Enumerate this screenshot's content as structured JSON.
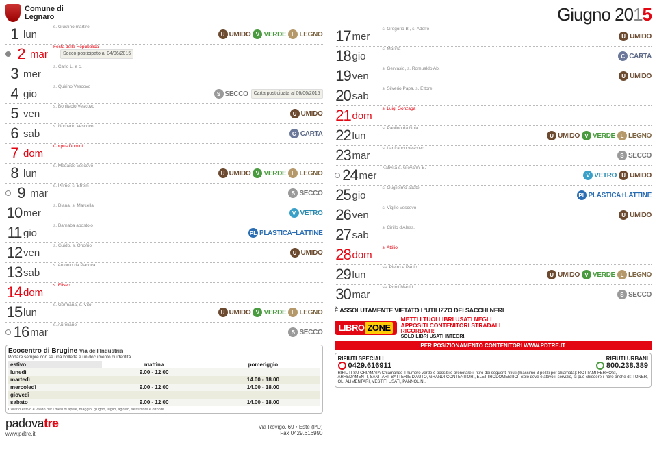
{
  "muni_line1": "Comune di",
  "muni_line2": "Legnaro",
  "month_title": "Giugno 20",
  "year_suffix1": "1",
  "year_suffix2": "5",
  "waste_types": {
    "umido": {
      "short": "U",
      "label": "UMIDO",
      "cls": "u-umido"
    },
    "verde": {
      "short": "V",
      "label": "VERDE",
      "cls": "u-verde"
    },
    "legno": {
      "short": "L",
      "label": "LEGNO",
      "cls": "u-legno"
    },
    "secco": {
      "short": "S",
      "label": "SECCO",
      "cls": "u-secco"
    },
    "carta": {
      "short": "C",
      "label": "CARTA",
      "cls": "u-carta"
    },
    "vetro": {
      "short": "V",
      "label": "VETRO",
      "cls": "u-vetro"
    },
    "plastica": {
      "short": "PL",
      "label": "PLASTICA+LATTINE",
      "cls": "u-plast"
    }
  },
  "left_days": [
    {
      "n": "1",
      "wd": "lun",
      "saint": "s. Giustino martire",
      "badges": [
        "umido",
        "verde",
        "legno"
      ]
    },
    {
      "n": "2",
      "wd": "mar",
      "saint": "Festa della Repubblica",
      "red": true,
      "moon": "full",
      "post": "Secco posticipato al 04/06/2015"
    },
    {
      "n": "3",
      "wd": "mer",
      "saint": "s. Carlo L. e c."
    },
    {
      "n": "4",
      "wd": "gio",
      "saint": "s. Quirino Vescovo",
      "badges": [
        "secco"
      ],
      "post": "Carta posticipata al 06/06/2015"
    },
    {
      "n": "5",
      "wd": "ven",
      "saint": "s. Bonifacio Vescovo",
      "badges": [
        "umido"
      ]
    },
    {
      "n": "6",
      "wd": "sab",
      "saint": "s. Norberto Vescovo",
      "badges": [
        "carta"
      ]
    },
    {
      "n": "7",
      "wd": "dom",
      "saint": "Corpus Domini",
      "red": true
    },
    {
      "n": "8",
      "wd": "lun",
      "saint": "s. Medardo vescovo",
      "badges": [
        "umido",
        "verde",
        "legno"
      ]
    },
    {
      "n": "9",
      "wd": "mar",
      "saint": "s. Primo, s. Efrem",
      "badges": [
        "secco"
      ],
      "moon": "empty"
    },
    {
      "n": "10",
      "wd": "mer",
      "saint": "s. Diana, s. Marcella",
      "badges": [
        "vetro"
      ]
    },
    {
      "n": "11",
      "wd": "gio",
      "saint": "s. Barnaba apostolo",
      "badges": [
        "plastica"
      ]
    },
    {
      "n": "12",
      "wd": "ven",
      "saint": "s. Guido, s. Onofrio",
      "badges": [
        "umido"
      ]
    },
    {
      "n": "13",
      "wd": "sab",
      "saint": "s. Antonio da Padova"
    },
    {
      "n": "14",
      "wd": "dom",
      "saint": "s. Eliseo",
      "red": true
    },
    {
      "n": "15",
      "wd": "lun",
      "saint": "s. Germana, s. Vito",
      "badges": [
        "umido",
        "verde",
        "legno"
      ]
    },
    {
      "n": "16",
      "wd": "mar",
      "saint": "s. Aureliano",
      "badges": [
        "secco"
      ],
      "moon": "empty"
    }
  ],
  "right_days": [
    {
      "n": "17",
      "wd": "mer",
      "saint": "s. Gregorio B., s. Adolfo",
      "badges": [
        "umido"
      ]
    },
    {
      "n": "18",
      "wd": "gio",
      "saint": "s. Marina",
      "badges": [
        "carta"
      ]
    },
    {
      "n": "19",
      "wd": "ven",
      "saint": "s. Gervasio, s. Romualdo Ab.",
      "badges": [
        "umido"
      ]
    },
    {
      "n": "20",
      "wd": "sab",
      "saint": "s. Silverio Papa, s. Ettore"
    },
    {
      "n": "21",
      "wd": "dom",
      "saint": "s. Luigi Gonzaga",
      "red": true
    },
    {
      "n": "22",
      "wd": "lun",
      "saint": "s. Paolino da Nola",
      "badges": [
        "umido",
        "verde",
        "legno"
      ]
    },
    {
      "n": "23",
      "wd": "mar",
      "saint": "s. Lanfranco vescovo",
      "badges": [
        "secco"
      ]
    },
    {
      "n": "24",
      "wd": "mer",
      "saint": "Natività s. Giovanni B.",
      "badges": [
        "vetro",
        "umido"
      ],
      "moon": "empty"
    },
    {
      "n": "25",
      "wd": "gio",
      "saint": "s. Guglielmo abate",
      "badges": [
        "plastica"
      ]
    },
    {
      "n": "26",
      "wd": "ven",
      "saint": "s. Vigilio vescovo",
      "badges": [
        "umido"
      ]
    },
    {
      "n": "27",
      "wd": "sab",
      "saint": "s. Cirillo d'Aless."
    },
    {
      "n": "28",
      "wd": "dom",
      "saint": "s. Attilio",
      "red": true
    },
    {
      "n": "29",
      "wd": "lun",
      "saint": "ss. Pietro e Paolo",
      "badges": [
        "umido",
        "verde",
        "legno"
      ]
    },
    {
      "n": "30",
      "wd": "mar",
      "saint": "ss. Primi Martiri",
      "badges": [
        "secco"
      ]
    }
  ],
  "eco": {
    "title": "Ecocentro di Brugine",
    "addr": "Via dell'Industria",
    "sub": "Portare sempre con sé una bolletta e un documento di identità",
    "head_estivo": "estivo",
    "head_matt": "mattina",
    "head_pom": "pomeriggio",
    "rows": [
      {
        "d": "lunedì",
        "m": "9.00 - 12.00",
        "p": ""
      },
      {
        "d": "martedì",
        "m": "",
        "p": "14.00 - 18.00"
      },
      {
        "d": "mercoledì",
        "m": "9.00 - 12.00",
        "p": "14.00 - 18.00"
      },
      {
        "d": "giovedì",
        "m": "",
        "p": ""
      },
      {
        "d": "sabato",
        "m": "9.00 - 12.00",
        "p": "14.00 - 18.00"
      }
    ],
    "foot": "L'orario estivo è valido per i mesi di aprile, maggio, giugno, luglio, agosto, settembre e ottobre."
  },
  "footer": {
    "brand1": "padova",
    "brand2": "tre",
    "site": "www.pdtre.it",
    "addr1": "Via Rovigo, 69 • Este (PD)",
    "addr2": "Fax 0429.616990"
  },
  "black_band": "È ASSOLUTAMENTE VIETATO L'UTILIZZO DEI SACCHI NERI",
  "libro": {
    "logo1": "LIBRO",
    "logo2": "ZONE",
    "l1": "METTI I TUOI LIBRI USATI NEGLI",
    "l2": "APPOSITI CONTENITORI STRADALI",
    "l3": "RICORDATI:",
    "l4": "SOLO LIBRI USATI INTEGRI."
  },
  "pos_band": "PER POSIZIONAMENTO CONTENITORI WWW.PDTRE.IT",
  "rif": {
    "h1": "RIFIUTI SPECIALI",
    "p1": "0429.616911",
    "h2": "RIFIUTI URBANI",
    "p2": "800.238.389",
    "body": "RIFIUTI SU CHIAMATA Chiamando il numero verde è possibile prenotare il ritiro dei seguenti rifiuti (massimo 3 pezzi per chiamata): ROTTAMI FERROSI, ARREDAMENTI, SANITARI, BATTERIE D'AUTO, GRANDI CONTENITORI, ELETTRODOMESTICI. Solo dove è attivo il servizio, si può chiedere il ritiro anche di: TONER, OLI ALIMENTARI, VESTITI USATI, PANNOLINI."
  }
}
